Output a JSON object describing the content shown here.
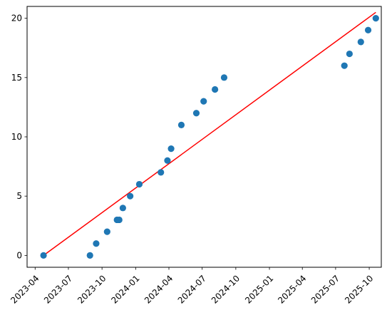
{
  "chart_data": {
    "type": "scatter",
    "title": "",
    "xlabel": "",
    "ylabel": "",
    "x_axis_type": "date",
    "xlim": [
      "2023-03-10",
      "2025-11-03"
    ],
    "ylim": [
      -1,
      21
    ],
    "x_tick_labels": [
      "2023-04",
      "2023-07",
      "2023-10",
      "2024-01",
      "2024-04",
      "2024-07",
      "2024-10",
      "2025-01",
      "2025-04",
      "2025-07",
      "2025-10"
    ],
    "y_tick_labels": [
      "0",
      "5",
      "10",
      "15",
      "20"
    ],
    "grid": false,
    "legend": null,
    "series": [
      {
        "type": "scatter",
        "color": "#1f77b4",
        "points": [
          {
            "x": "2023-04-24",
            "y": 0
          },
          {
            "x": "2023-08-29",
            "y": 0
          },
          {
            "x": "2023-09-15",
            "y": 1
          },
          {
            "x": "2023-10-15",
            "y": 2
          },
          {
            "x": "2023-11-11",
            "y": 3
          },
          {
            "x": "2023-11-17",
            "y": 3
          },
          {
            "x": "2023-11-27",
            "y": 4
          },
          {
            "x": "2023-12-17",
            "y": 5
          },
          {
            "x": "2024-01-11",
            "y": 6
          },
          {
            "x": "2024-03-10",
            "y": 7
          },
          {
            "x": "2024-03-28",
            "y": 8
          },
          {
            "x": "2024-04-07",
            "y": 9
          },
          {
            "x": "2024-05-05",
            "y": 11
          },
          {
            "x": "2024-06-15",
            "y": 12
          },
          {
            "x": "2024-07-05",
            "y": 13
          },
          {
            "x": "2024-08-05",
            "y": 14
          },
          {
            "x": "2024-08-30",
            "y": 15
          },
          {
            "x": "2025-07-25",
            "y": 16
          },
          {
            "x": "2025-08-08",
            "y": 17
          },
          {
            "x": "2025-09-08",
            "y": 18
          },
          {
            "x": "2025-09-28",
            "y": 19
          },
          {
            "x": "2025-10-19",
            "y": 20
          }
        ]
      },
      {
        "type": "line",
        "color": "#ff0000",
        "points": [
          {
            "x": "2023-04-24",
            "y": 0
          },
          {
            "x": "2025-10-19",
            "y": 20.5
          }
        ]
      }
    ]
  }
}
